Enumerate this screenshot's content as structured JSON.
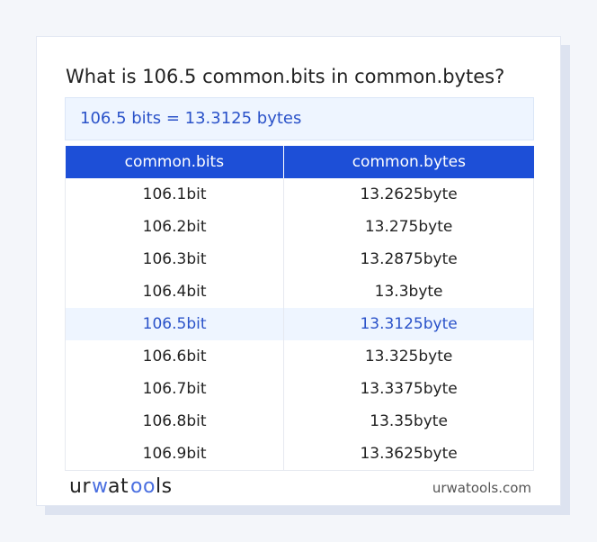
{
  "title": "What is 106.5 common.bits in common.bytes?",
  "result": "106.5 bits = 13.3125 bytes",
  "table": {
    "headers": [
      "common.bits",
      "common.bytes"
    ],
    "rows": [
      {
        "from": "106.1bit",
        "to": "13.2625byte",
        "highlight": false
      },
      {
        "from": "106.2bit",
        "to": "13.275byte",
        "highlight": false
      },
      {
        "from": "106.3bit",
        "to": "13.2875byte",
        "highlight": false
      },
      {
        "from": "106.4bit",
        "to": "13.3byte",
        "highlight": false
      },
      {
        "from": "106.5bit",
        "to": "13.3125byte",
        "highlight": true
      },
      {
        "from": "106.6bit",
        "to": "13.325byte",
        "highlight": false
      },
      {
        "from": "106.7bit",
        "to": "13.3375byte",
        "highlight": false
      },
      {
        "from": "106.8bit",
        "to": "13.35byte",
        "highlight": false
      },
      {
        "from": "106.9bit",
        "to": "13.3625byte",
        "highlight": false
      }
    ]
  },
  "footer": {
    "logo": "urwatools",
    "site": "urwatools.com"
  },
  "colors": {
    "accent": "#1d4fd7",
    "highlight_text": "#2a52c9",
    "highlight_bg": "#eef5ff"
  }
}
